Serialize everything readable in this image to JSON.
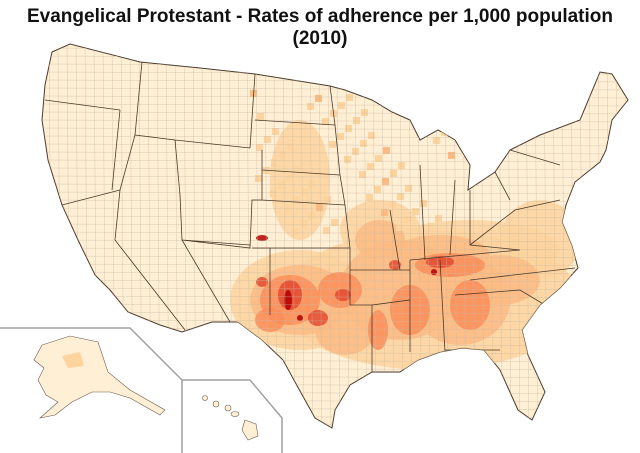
{
  "title": "Evangelical Protestant - Rates of adherence per 1,000 population (2010)",
  "colors": {
    "base": "#FFEFD5",
    "level1": "#FDD49E",
    "level2": "#FDBB84",
    "level3": "#FC8D59",
    "level4": "#E34A33",
    "level5": "#B30000",
    "border": "#6b5a4a",
    "inset_border": "#a0a0a0"
  }
}
